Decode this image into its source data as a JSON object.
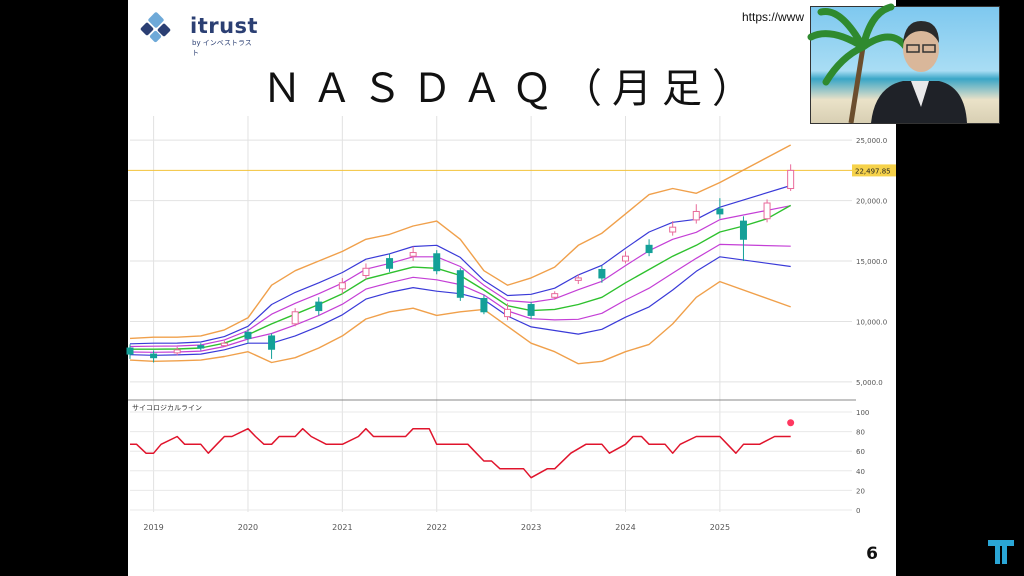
{
  "slide": {
    "logo_text": "itrust",
    "logo_sub": "by インベストラスト",
    "url": "https://www",
    "title": "ＮＡＳＤＡＱ（月足）",
    "page_number": "6"
  },
  "colors": {
    "candle_up": "#e86a9a",
    "candle_down": "#14a098",
    "band_outer": "#f0a04b",
    "band_mid": "#c43fd6",
    "band_inner": "#3a3ad8",
    "center": "#2ec12e",
    "psych": "#e0142c",
    "price_line": "#f3c23a"
  },
  "chart_data": [
    {
      "type": "candlestick",
      "title": "",
      "y_tick_labels": [
        "25,000.0",
        "20,000.0",
        "15,000.0",
        "10,000.0",
        "5,000.0"
      ],
      "y_ticks": [
        25000,
        20000,
        15000,
        10000,
        5000
      ],
      "ylim": [
        3500,
        27000
      ],
      "x_tick_labels": [
        "2019",
        "2020",
        "2021",
        "2022",
        "2023",
        "2024",
        "2025"
      ],
      "x_ticks": [
        2019,
        2020,
        2021,
        2022,
        2023,
        2024,
        2025
      ],
      "xlim": [
        2018.75,
        2026.4
      ],
      "last_price_label": "22,497.85",
      "last_price": 22497.85,
      "grid": true,
      "bands": {
        "center": [
          7700,
          7700,
          7720,
          7800,
          8200,
          8900,
          9800,
          10600,
          11400,
          12300,
          13500,
          14000,
          14500,
          14400,
          13800,
          12600,
          11300,
          10900,
          11000,
          11400,
          12000,
          13200,
          14300,
          15400,
          16300,
          17400,
          17900,
          18500,
          19600
        ],
        "upper_outer": [
          8600,
          8700,
          8700,
          8800,
          9300,
          10300,
          13000,
          14200,
          15000,
          15800,
          16800,
          17200,
          17900,
          18300,
          16800,
          14200,
          13000,
          13600,
          14500,
          16300,
          17300,
          18900,
          20500,
          21000,
          20600,
          21500,
          24600
        ],
        "upper_inner": [
          8150,
          8200,
          8210,
          8300,
          8750,
          9600,
          11400,
          12400,
          13200,
          14050,
          15150,
          15600,
          16200,
          16300,
          15300,
          13400,
          12150,
          12250,
          12750,
          13850,
          14650,
          16050,
          17400,
          18200,
          18450,
          19450,
          21250
        ],
        "lower_inner": [
          7250,
          7200,
          7230,
          7300,
          7650,
          8200,
          8200,
          8800,
          9600,
          10550,
          11850,
          12400,
          12800,
          12500,
          12300,
          11800,
          10450,
          9550,
          9250,
          8950,
          9350,
          10350,
          11200,
          12600,
          14150,
          15350,
          14550
        ],
        "lower_outer": [
          6800,
          6700,
          6740,
          6800,
          7100,
          7500,
          6600,
          7000,
          7800,
          8800,
          10200,
          10800,
          11100,
          10500,
          10800,
          11000,
          9600,
          8200,
          7500,
          6500,
          6700,
          7500,
          8100,
          9800,
          12000,
          13300,
          11200
        ],
        "band_dates": [
          2018.75,
          2019.0,
          2019.25,
          2019.5,
          2019.75,
          2020.0,
          2020.25,
          2020.5,
          2020.75,
          2021.0,
          2021.25,
          2021.5,
          2021.75,
          2022.0,
          2022.25,
          2022.5,
          2022.75,
          2023.0,
          2023.25,
          2023.5,
          2023.75,
          2024.0,
          2024.25,
          2024.5,
          2024.75,
          2025.0,
          2025.75
        ],
        "center_dates": [
          2018.75,
          2019.0,
          2019.25,
          2019.5,
          2019.75,
          2020.0,
          2020.25,
          2020.5,
          2020.75,
          2021.0,
          2021.25,
          2021.5,
          2021.75,
          2022.0,
          2022.25,
          2022.5,
          2022.75,
          2023.0,
          2023.25,
          2023.5,
          2023.75,
          2024.0,
          2024.25,
          2024.5,
          2024.75,
          2025.0,
          2025.25,
          2025.5,
          2025.75
        ]
      },
      "candles_quarterly": [
        {
          "date": 2018.75,
          "o": 7800,
          "c": 7300,
          "h": 8100,
          "l": 6900
        },
        {
          "date": 2019.0,
          "o": 7300,
          "c": 7000,
          "h": 7600,
          "l": 6600
        },
        {
          "date": 2019.25,
          "o": 7400,
          "c": 7650,
          "h": 7900,
          "l": 7200
        },
        {
          "date": 2019.5,
          "o": 8000,
          "c": 7800,
          "h": 8200,
          "l": 7600
        },
        {
          "date": 2019.75,
          "o": 8000,
          "c": 8200,
          "h": 8400,
          "l": 7900
        },
        {
          "date": 2020.0,
          "o": 9100,
          "c": 8600,
          "h": 9400,
          "l": 8200
        },
        {
          "date": 2020.25,
          "o": 8800,
          "c": 7700,
          "h": 9000,
          "l": 6900
        },
        {
          "date": 2020.5,
          "o": 9800,
          "c": 10800,
          "h": 11100,
          "l": 9600
        },
        {
          "date": 2020.75,
          "o": 11600,
          "c": 10900,
          "h": 12000,
          "l": 10500
        },
        {
          "date": 2021.0,
          "o": 12700,
          "c": 13200,
          "h": 13600,
          "l": 12300
        },
        {
          "date": 2021.25,
          "o": 13800,
          "c": 14400,
          "h": 14800,
          "l": 13500
        },
        {
          "date": 2021.5,
          "o": 15200,
          "c": 14400,
          "h": 15600,
          "l": 14100
        },
        {
          "date": 2021.75,
          "o": 15400,
          "c": 15700,
          "h": 16200,
          "l": 15000
        },
        {
          "date": 2022.0,
          "o": 15600,
          "c": 14200,
          "h": 15900,
          "l": 13900
        },
        {
          "date": 2022.25,
          "o": 14200,
          "c": 12000,
          "h": 14400,
          "l": 11700
        },
        {
          "date": 2022.5,
          "o": 11900,
          "c": 10800,
          "h": 12200,
          "l": 10600
        },
        {
          "date": 2022.75,
          "o": 10400,
          "c": 11000,
          "h": 11500,
          "l": 10100
        },
        {
          "date": 2023.0,
          "o": 11400,
          "c": 10500,
          "h": 11600,
          "l": 10200
        },
        {
          "date": 2023.25,
          "o": 12000,
          "c": 12300,
          "h": 12500,
          "l": 11800
        },
        {
          "date": 2023.5,
          "o": 13400,
          "c": 13600,
          "h": 13900,
          "l": 13100
        },
        {
          "date": 2023.75,
          "o": 14300,
          "c": 13600,
          "h": 14600,
          "l": 13200
        },
        {
          "date": 2024.0,
          "o": 15000,
          "c": 15400,
          "h": 15800,
          "l": 14800
        },
        {
          "date": 2024.25,
          "o": 16300,
          "c": 15700,
          "h": 16800,
          "l": 15400
        },
        {
          "date": 2024.5,
          "o": 17400,
          "c": 17800,
          "h": 18300,
          "l": 17100
        },
        {
          "date": 2024.75,
          "o": 18400,
          "c": 19100,
          "h": 19700,
          "l": 18100
        },
        {
          "date": 2025.0,
          "o": 19300,
          "c": 18900,
          "h": 20200,
          "l": 18500
        },
        {
          "date": 2025.25,
          "o": 18300,
          "c": 16800,
          "h": 18700,
          "l": 15000
        },
        {
          "date": 2025.5,
          "o": 18500,
          "c": 19800,
          "h": 20100,
          "l": 18200
        },
        {
          "date": 2025.75,
          "o": 21000,
          "c": 22500,
          "h": 23000,
          "l": 20800
        }
      ]
    },
    {
      "type": "line",
      "series_name": "サイコロジカルライン",
      "y_tick_labels": [
        "100",
        "80",
        "60",
        "40",
        "20",
        "0"
      ],
      "y_ticks": [
        100,
        80,
        60,
        40,
        20,
        0
      ],
      "ylim": [
        0,
        100
      ],
      "xlim": [
        2018.75,
        2026.4
      ],
      "x": [
        2018.75,
        2018.82,
        2018.92,
        2019.0,
        2019.08,
        2019.25,
        2019.33,
        2019.5,
        2019.58,
        2019.67,
        2019.75,
        2019.83,
        2020.0,
        2020.08,
        2020.17,
        2020.25,
        2020.33,
        2020.5,
        2020.58,
        2020.67,
        2020.83,
        2021.0,
        2021.17,
        2021.25,
        2021.33,
        2021.5,
        2021.67,
        2021.75,
        2021.92,
        2022.0,
        2022.17,
        2022.33,
        2022.42,
        2022.5,
        2022.58,
        2022.67,
        2022.83,
        2022.92,
        2023.0,
        2023.17,
        2023.25,
        2023.42,
        2023.58,
        2023.67,
        2023.75,
        2023.83,
        2024.0,
        2024.08,
        2024.17,
        2024.25,
        2024.33,
        2024.42,
        2024.5,
        2024.58,
        2024.75,
        2024.92,
        2025.0,
        2025.08,
        2025.17,
        2025.25,
        2025.33,
        2025.42,
        2025.58,
        2025.75
      ],
      "values": [
        67,
        67,
        58,
        58,
        67,
        75,
        67,
        67,
        58,
        67,
        75,
        75,
        83,
        75,
        67,
        67,
        75,
        75,
        83,
        75,
        67,
        67,
        75,
        83,
        75,
        75,
        75,
        83,
        83,
        67,
        67,
        67,
        58,
        50,
        50,
        42,
        42,
        42,
        33,
        42,
        42,
        58,
        67,
        67,
        67,
        58,
        67,
        75,
        75,
        67,
        67,
        67,
        58,
        67,
        75,
        75,
        75,
        67,
        58,
        67,
        67,
        67,
        75,
        75
      ]
    }
  ]
}
